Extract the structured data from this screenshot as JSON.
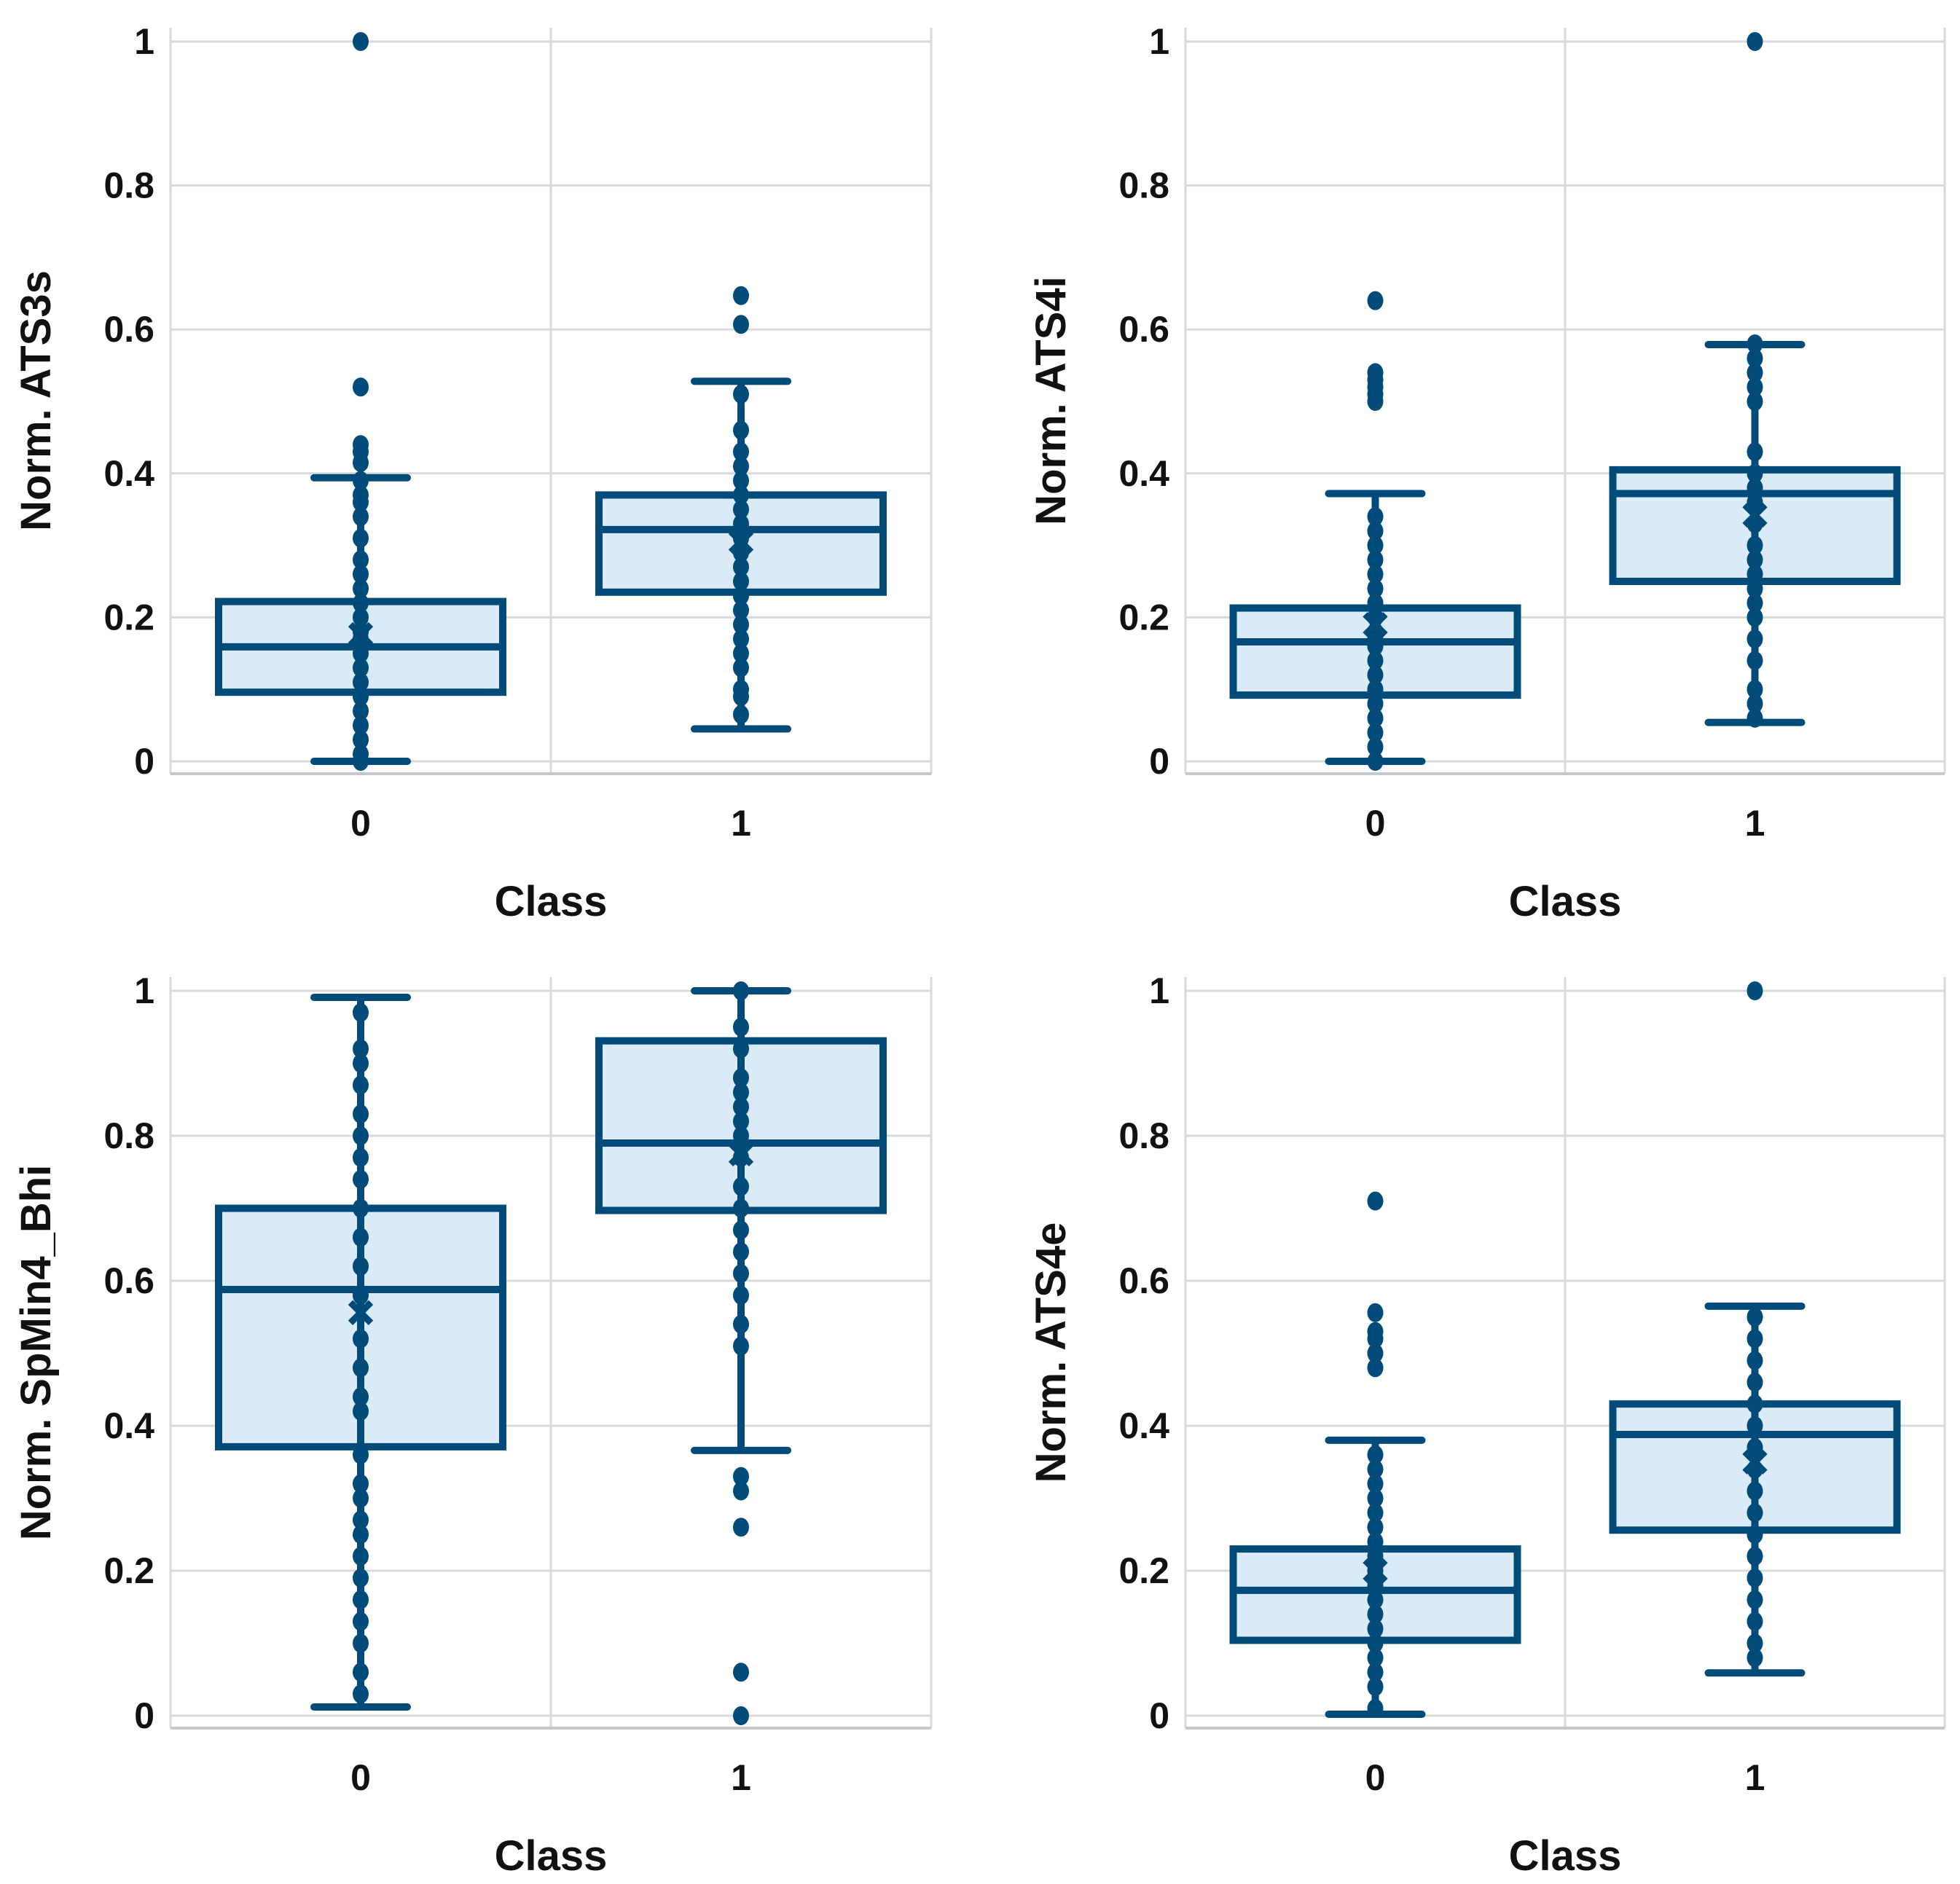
{
  "colors": {
    "stroke": "#004b7a",
    "fill": "#dbeaf7",
    "grid": "#d9d9d9"
  },
  "chart_data": [
    {
      "type": "box",
      "xlabel": "Class",
      "ylabel": "Norm. ATS3s",
      "categories": [
        "0",
        "1"
      ],
      "yticks": [
        "0",
        "0.2",
        "0.4",
        "0.6",
        "0.8",
        "1"
      ],
      "ylim": [
        0,
        1
      ],
      "grid": true,
      "boxes": [
        {
          "whisker_low": 0.0,
          "q1": 0.096,
          "median": 0.159,
          "q3": 0.222,
          "whisker_high": 0.394,
          "mean": 0.176,
          "points": [
            0.0,
            0.01,
            0.03,
            0.05,
            0.07,
            0.09,
            0.11,
            0.13,
            0.15,
            0.16,
            0.17,
            0.18,
            0.2,
            0.22,
            0.24,
            0.26,
            0.28,
            0.31,
            0.34,
            0.36,
            0.37,
            0.39
          ],
          "outliers": [
            0.415,
            0.43,
            0.44,
            0.52,
            1.0
          ]
        },
        {
          "whisker_low": 0.045,
          "q1": 0.235,
          "median": 0.322,
          "q3": 0.37,
          "whisker_high": 0.528,
          "mean": 0.305,
          "points": [
            0.065,
            0.09,
            0.1,
            0.13,
            0.15,
            0.17,
            0.19,
            0.21,
            0.23,
            0.25,
            0.27,
            0.29,
            0.31,
            0.33,
            0.35,
            0.37,
            0.39,
            0.41,
            0.43,
            0.46,
            0.51
          ],
          "outliers": [
            0.607,
            0.647
          ]
        }
      ]
    },
    {
      "type": "box",
      "xlabel": "Class",
      "ylabel": "Norm. ATS4i",
      "categories": [
        "0",
        "1"
      ],
      "yticks": [
        "0",
        "0.2",
        "0.4",
        "0.6",
        "0.8",
        "1"
      ],
      "ylim": [
        0,
        1
      ],
      "grid": true,
      "boxes": [
        {
          "whisker_low": 0.0,
          "q1": 0.092,
          "median": 0.166,
          "q3": 0.213,
          "whisker_high": 0.372,
          "mean": 0.19,
          "points": [
            0.0,
            0.02,
            0.04,
            0.06,
            0.08,
            0.1,
            0.12,
            0.14,
            0.16,
            0.17,
            0.18,
            0.2,
            0.22,
            0.24,
            0.26,
            0.28,
            0.3,
            0.32,
            0.34
          ],
          "outliers": [
            0.5,
            0.51,
            0.52,
            0.53,
            0.54,
            0.64
          ]
        },
        {
          "whisker_low": 0.054,
          "q1": 0.25,
          "median": 0.372,
          "q3": 0.405,
          "whisker_high": 0.579,
          "mean": 0.342,
          "points": [
            0.06,
            0.08,
            0.1,
            0.14,
            0.17,
            0.2,
            0.22,
            0.24,
            0.26,
            0.28,
            0.3,
            0.33,
            0.36,
            0.38,
            0.4,
            0.43,
            0.5,
            0.52,
            0.54,
            0.56,
            0.58
          ],
          "outliers": [
            1.0
          ]
        }
      ]
    },
    {
      "type": "box",
      "xlabel": "Class",
      "ylabel": "Norm. SpMin4_Bhi",
      "categories": [
        "0",
        "1"
      ],
      "yticks": [
        "0",
        "0.2",
        "0.4",
        "0.6",
        "0.8",
        "1"
      ],
      "ylim": [
        0,
        1
      ],
      "grid": true,
      "boxes": [
        {
          "whisker_low": 0.012,
          "q1": 0.371,
          "median": 0.588,
          "q3": 0.7,
          "whisker_high": 0.991,
          "mean": 0.556,
          "points": [
            0.03,
            0.06,
            0.1,
            0.13,
            0.16,
            0.19,
            0.22,
            0.25,
            0.27,
            0.3,
            0.32,
            0.36,
            0.42,
            0.44,
            0.48,
            0.52,
            0.58,
            0.62,
            0.66,
            0.7,
            0.74,
            0.77,
            0.8,
            0.83,
            0.87,
            0.9,
            0.92,
            0.97
          ],
          "outliers": []
        },
        {
          "whisker_low": 0.366,
          "q1": 0.697,
          "median": 0.79,
          "q3": 0.931,
          "whisker_high": 1.0,
          "mean": 0.775,
          "points": [
            0.51,
            0.54,
            0.58,
            0.61,
            0.64,
            0.67,
            0.7,
            0.73,
            0.77,
            0.8,
            0.82,
            0.84,
            0.86,
            0.88,
            0.92,
            0.95,
            1.0
          ],
          "outliers": [
            0.0,
            0.06,
            0.26,
            0.31,
            0.33
          ]
        }
      ]
    },
    {
      "type": "box",
      "xlabel": "Class",
      "ylabel": "Norm. ATS4e",
      "categories": [
        "0",
        "1"
      ],
      "yticks": [
        "0",
        "0.2",
        "0.4",
        "0.6",
        "0.8",
        "1"
      ],
      "ylim": [
        0,
        1
      ],
      "grid": true,
      "boxes": [
        {
          "whisker_low": 0.002,
          "q1": 0.104,
          "median": 0.173,
          "q3": 0.23,
          "whisker_high": 0.38,
          "mean": 0.2,
          "points": [
            0.01,
            0.04,
            0.06,
            0.08,
            0.1,
            0.12,
            0.14,
            0.16,
            0.18,
            0.2,
            0.22,
            0.24,
            0.26,
            0.28,
            0.3,
            0.32,
            0.34,
            0.36
          ],
          "outliers": [
            0.48,
            0.5,
            0.52,
            0.53,
            0.556,
            0.71
          ]
        },
        {
          "whisker_low": 0.059,
          "q1": 0.256,
          "median": 0.388,
          "q3": 0.43,
          "whisker_high": 0.565,
          "mean": 0.35,
          "points": [
            0.08,
            0.1,
            0.13,
            0.16,
            0.19,
            0.22,
            0.25,
            0.28,
            0.31,
            0.34,
            0.37,
            0.4,
            0.43,
            0.46,
            0.49,
            0.52,
            0.55
          ],
          "outliers": [
            1.0
          ]
        }
      ]
    }
  ]
}
